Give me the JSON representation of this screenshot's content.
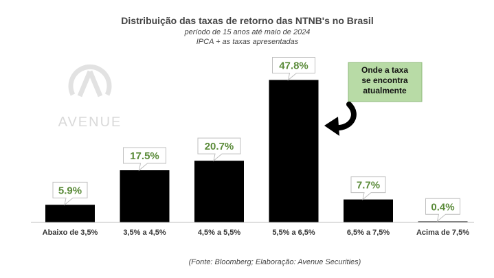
{
  "chart_data": {
    "type": "bar",
    "title": "Distribuição das taxas de retorno das NTNB's no Brasil",
    "subtitle": [
      "período de 15 anos até maio de 2024",
      "IPCA + as taxas apresentadas"
    ],
    "categories": [
      "Abaixo de 3,5%",
      "3,5% a 4,5%",
      "4,5% a 5,5%",
      "5,5% a 6,5%",
      "6,5% a 7,5%",
      "Acima de 7,5%"
    ],
    "values": [
      5.9,
      17.5,
      20.7,
      47.8,
      7.7,
      0.4
    ],
    "data_labels": [
      "5.9%",
      "17.5%",
      "20.7%",
      "47.8%",
      "7.7%",
      "0.4%"
    ],
    "ylim": [
      0,
      50
    ],
    "grid": false,
    "legend": "none",
    "bar_color": "#000000",
    "label_color": "#5b8b3a",
    "callout": {
      "lines": [
        "Onde a taxa",
        "se encontra",
        "atualmente"
      ],
      "points_to": "5,5% a 6,5%",
      "fill": "#b8dba6"
    },
    "source": "(Fonte: Bloomberg; Elaboração: Avenue Securities)"
  },
  "watermark": {
    "text": "AVENUE",
    "icon": "avenue-logo-icon"
  }
}
